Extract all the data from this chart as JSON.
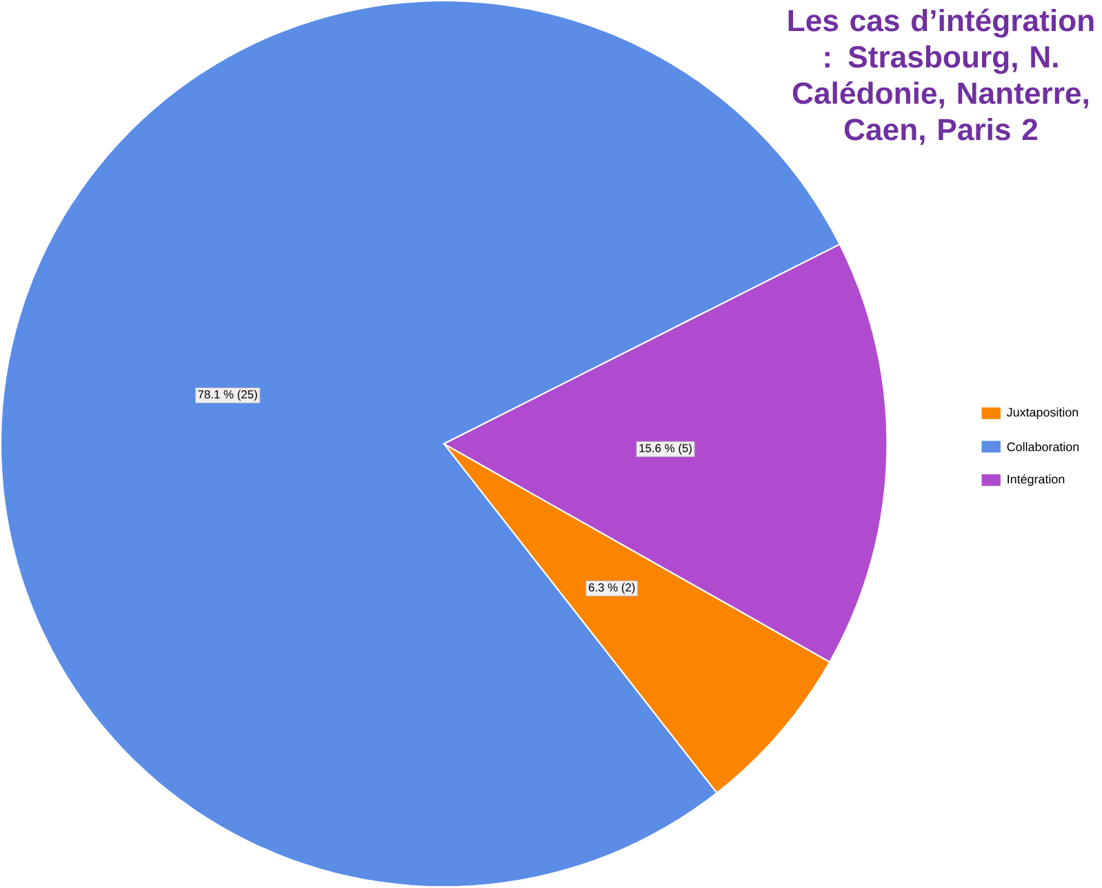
{
  "chart_data": {
    "type": "pie",
    "title": "Les cas d’intégration : Strasbourg, N. Calédonie, Nanterre, Caen, Paris 2",
    "categories": [
      "Juxtaposition",
      "Collaboration",
      "Intégration"
    ],
    "values": [
      2,
      25,
      5
    ],
    "value_labels": [
      "6.3 % (2)",
      "78.1 % (25)",
      "15.6 % (5)"
    ],
    "colors": [
      "#fb8500",
      "#5b8de6",
      "#b04bcf"
    ],
    "legend": "right"
  }
}
